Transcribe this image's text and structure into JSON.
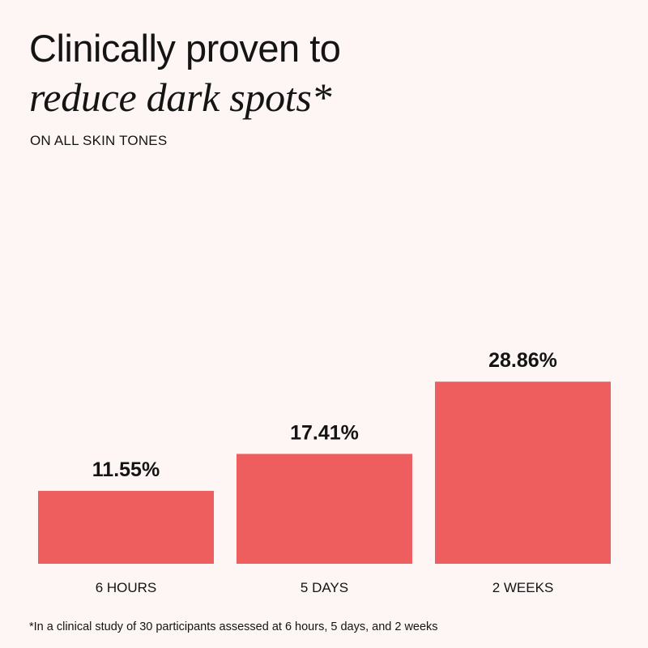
{
  "heading": {
    "line1": "Clinically proven to",
    "line2": "reduce dark spots*"
  },
  "subheading": "ON ALL SKIN TONES",
  "footnote": "*In a clinical study of 30 participants assessed at 6 hours, 5 days, and 2 weeks",
  "colors": {
    "background": "#fdf6f4",
    "bar": "#ef5e5e",
    "text": "#141414"
  },
  "chart_data": {
    "type": "bar",
    "categories": [
      "6 HOURS",
      "5 DAYS",
      "2 WEEKS"
    ],
    "values": [
      11.55,
      17.41,
      28.86
    ],
    "value_labels": [
      "11.55%",
      "17.41%",
      "28.86%"
    ],
    "grid": false,
    "legend": "none"
  }
}
